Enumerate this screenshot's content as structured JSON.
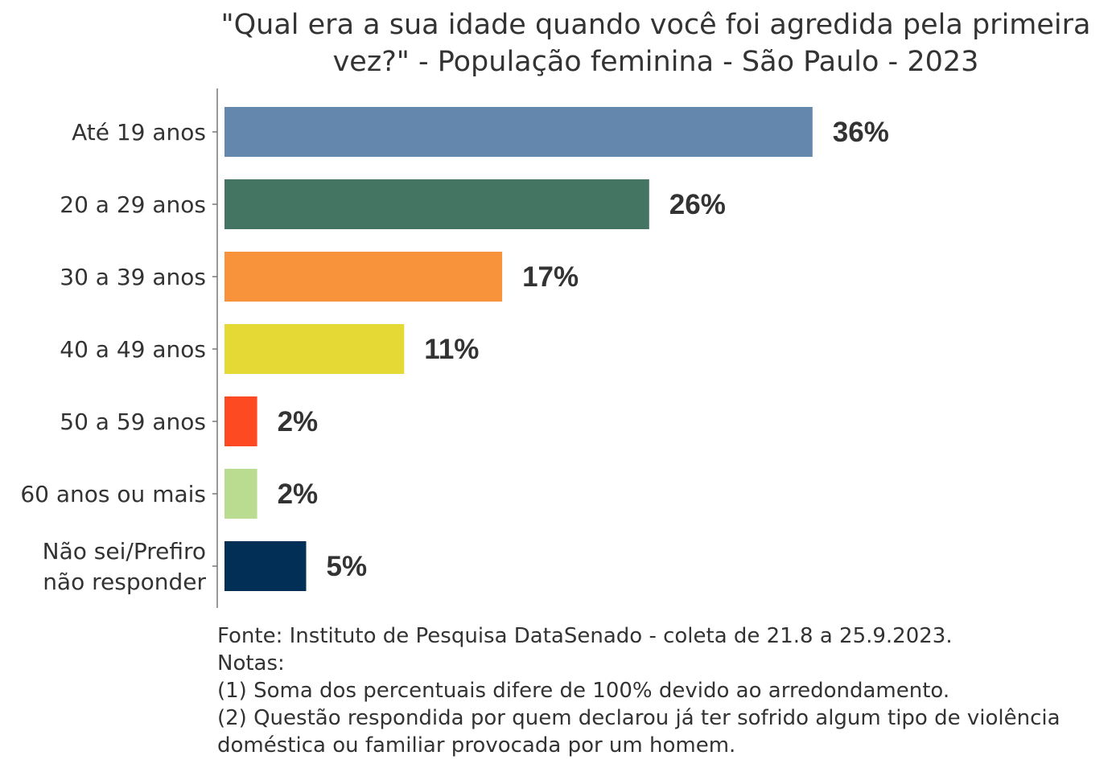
{
  "chart_data": {
    "type": "bar",
    "orientation": "horizontal",
    "title_lines": [
      "\"Qual era a sua idade quando você foi agredida pela primeira",
      "vez?\" - População feminina - São Paulo - 2023"
    ],
    "categories": [
      [
        "Até 19 anos"
      ],
      [
        "20 a 29 anos"
      ],
      [
        "30 a 39 anos"
      ],
      [
        "40 a 49 anos"
      ],
      [
        "50 a 59 anos"
      ],
      [
        "60 anos ou mais"
      ],
      [
        "Não sei/Prefiro",
        "não responder"
      ]
    ],
    "values": [
      36,
      26,
      17,
      11,
      2,
      2,
      5
    ],
    "value_labels": [
      "36%",
      "26%",
      "17%",
      "11%",
      "2%",
      "2%",
      "5%"
    ],
    "colors": [
      "#6487ad",
      "#447562",
      "#f9933b",
      "#e5d935",
      "#fd4a22",
      "#badc90",
      "#022f55"
    ],
    "xlim": [
      0,
      50
    ],
    "grid": false,
    "legend": "none"
  },
  "caption": {
    "lines": [
      "Fonte: Instituto de Pesquisa DataSenado - coleta de 21.8 a 25.9.2023.",
      "Notas:",
      "(1) Soma dos percentuais difere de 100% devido ao arredondamento.",
      "(2) Questão respondida por quem declarou já ter sofrido algum tipo de violência",
      "doméstica ou familiar provocada por um homem."
    ]
  }
}
